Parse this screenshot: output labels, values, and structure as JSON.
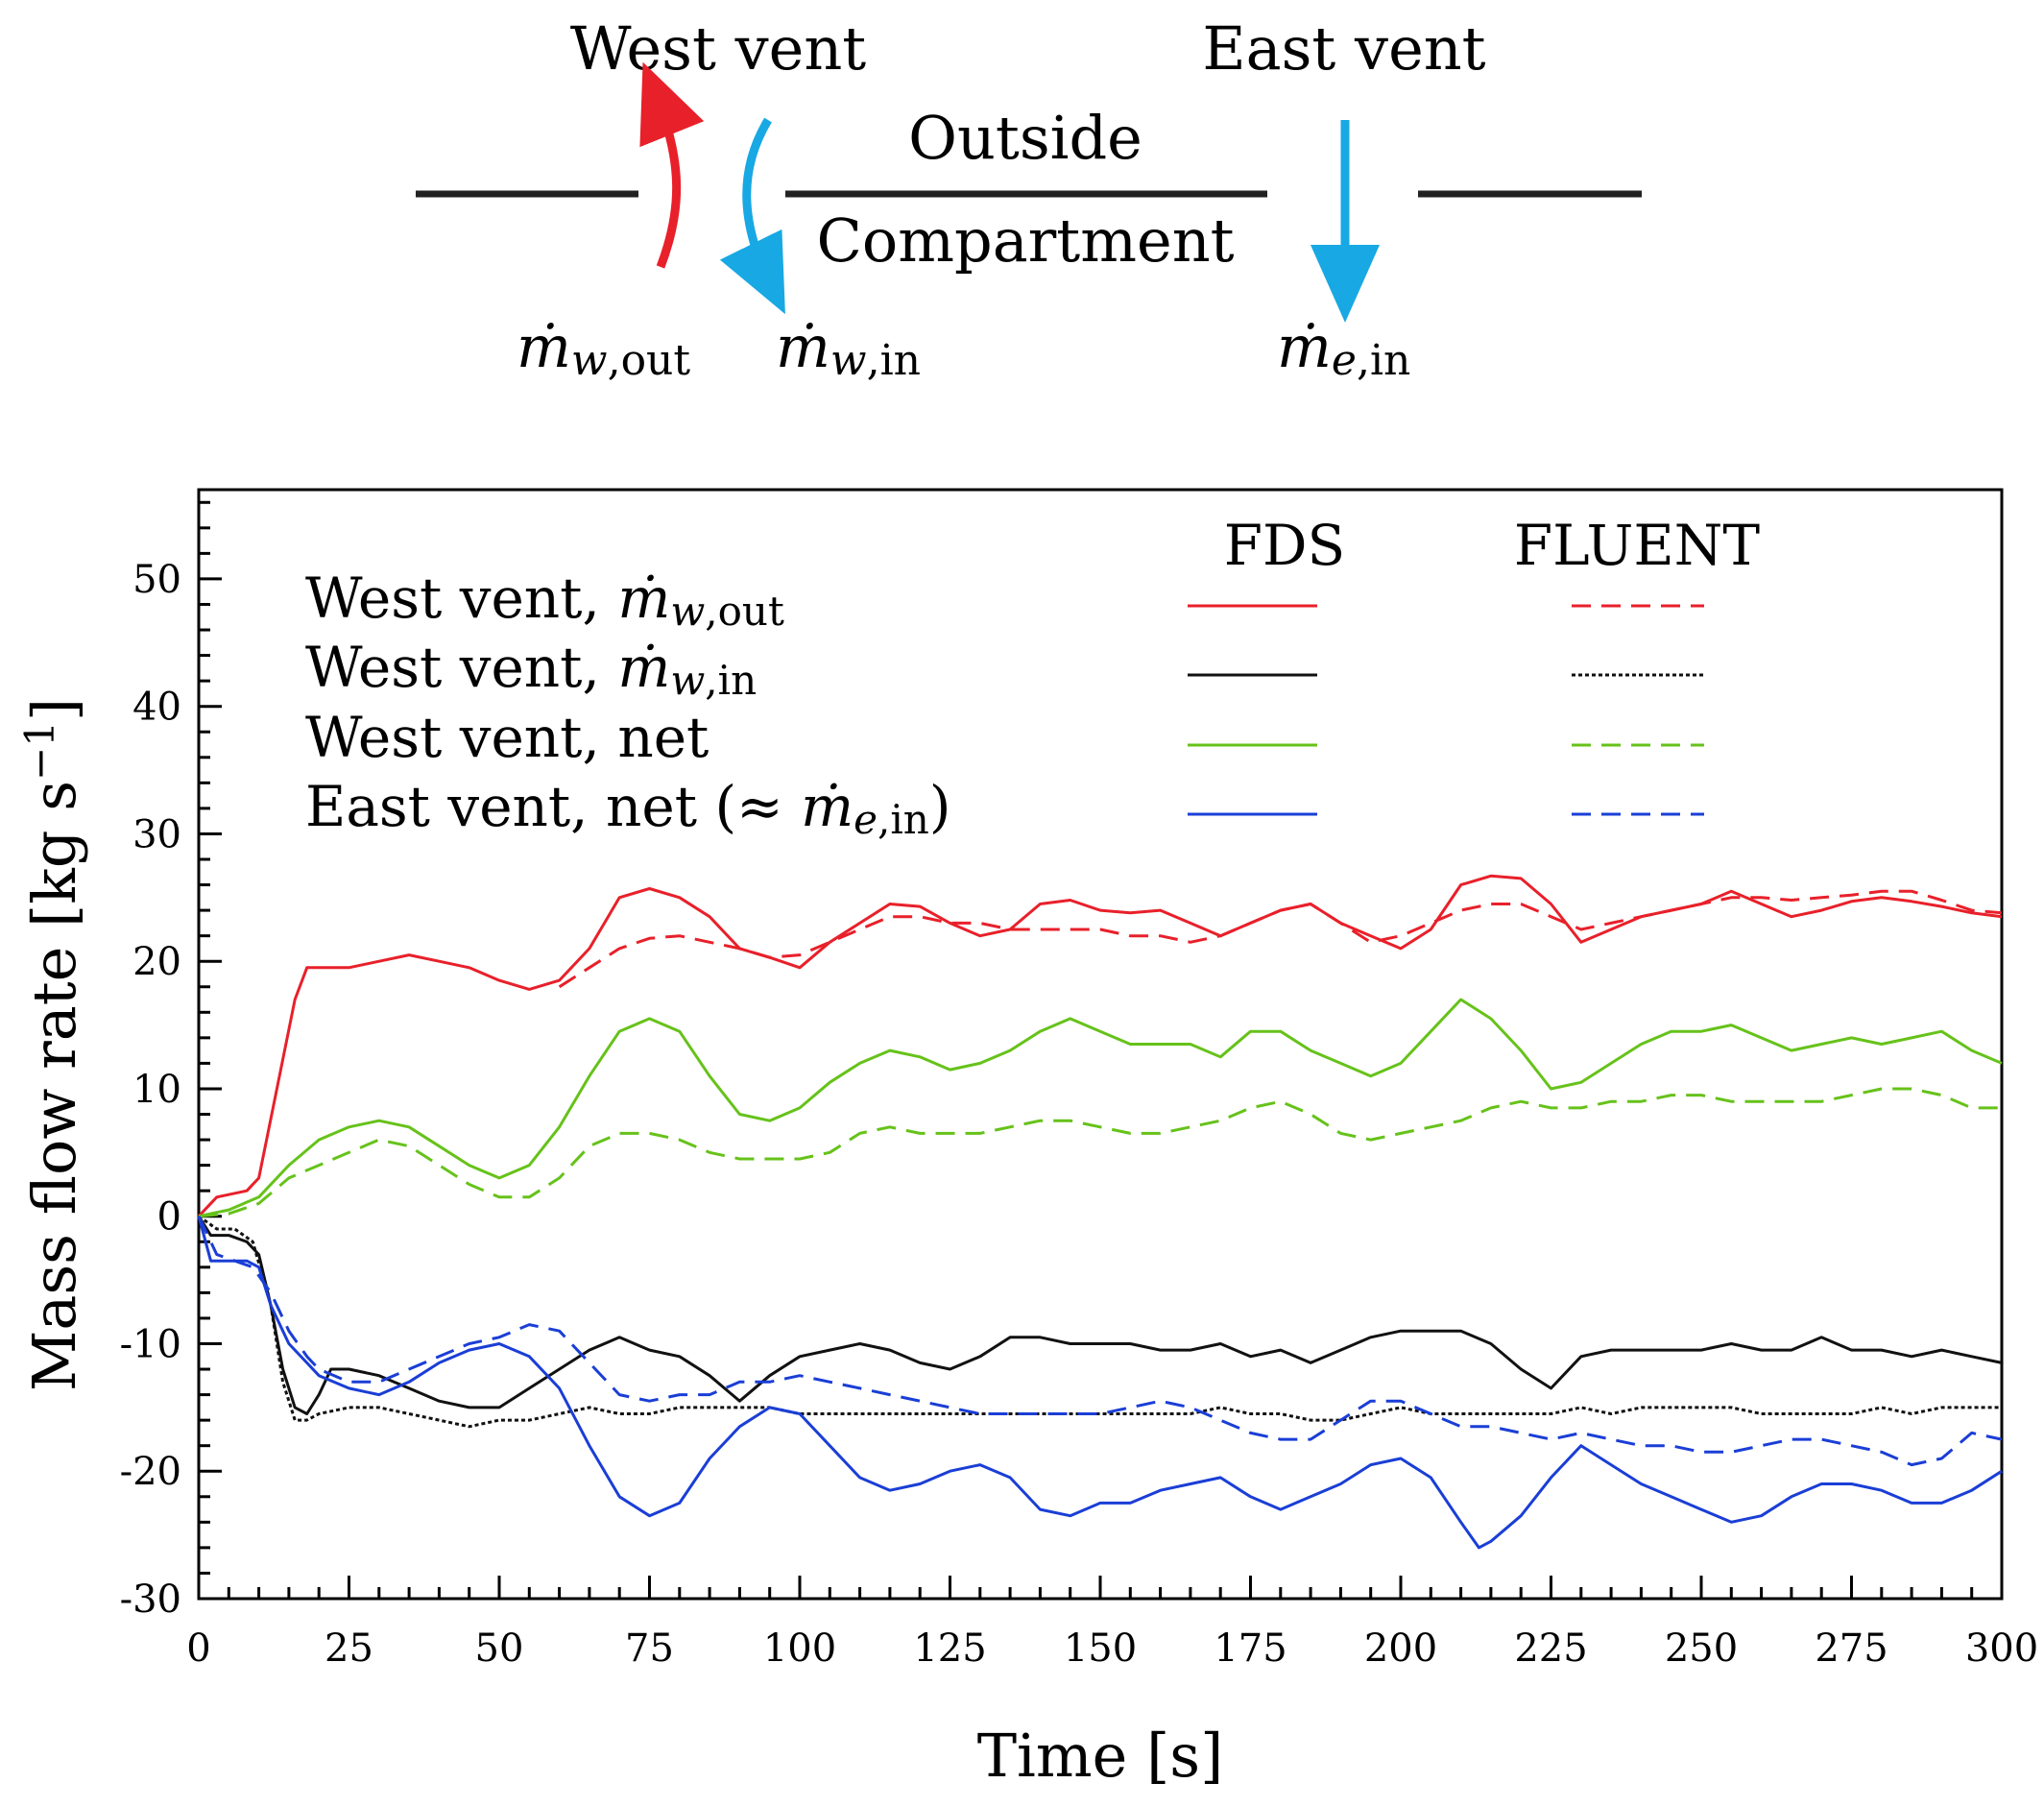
{
  "diagram": {
    "west_vent_label": "West vent",
    "east_vent_label": "East vent",
    "outside_label": "Outside",
    "compartment_label": "Compartment",
    "m_w_out": {
      "symbol": "ṁ",
      "sub": "w",
      "sub2": ",out"
    },
    "m_w_in": {
      "symbol": "ṁ",
      "sub": "w",
      "sub2": ",in"
    },
    "m_e_in": {
      "symbol": "ṁ",
      "sub": "e",
      "sub2": ",in"
    },
    "colors": {
      "out_arrow": "#e8202a",
      "in_arrow": "#18a8e4",
      "wall": "#222222"
    }
  },
  "legend": {
    "fds_header": "FDS",
    "fluent_header": "FLUENT",
    "entries": [
      {
        "text": "West vent, ",
        "sym": "ṁ",
        "sub": "w",
        "sub2": ",out",
        "suffix": ""
      },
      {
        "text": "West vent, ",
        "sym": "ṁ",
        "sub": "w",
        "sub2": ",in",
        "suffix": ""
      },
      {
        "text": "West vent, net",
        "sym": "",
        "sub": "",
        "sub2": "",
        "suffix": ""
      },
      {
        "text": "East vent, net (≈ ",
        "sym": "ṁ",
        "sub": "e",
        "sub2": ",in",
        "suffix": ")"
      }
    ]
  },
  "chart_data": {
    "type": "line",
    "xlabel": "Time [s]",
    "ylabel": "Mass flow rate [kg s",
    "ylabel_sup": "−1",
    "ylabel_close": "]",
    "xlim": [
      0,
      300
    ],
    "ylim": [
      -30,
      57
    ],
    "xticks": [
      0,
      25,
      50,
      75,
      100,
      125,
      150,
      175,
      200,
      225,
      250,
      275,
      300
    ],
    "yticks": [
      -30,
      -20,
      -10,
      0,
      10,
      20,
      30,
      40,
      50
    ],
    "ytick_labels": [
      "-30",
      "-20",
      "-10",
      "0",
      "10",
      "20",
      "30",
      "40",
      "50"
    ],
    "series": [
      {
        "name": "FDS West vent out",
        "color": "#e8202a",
        "dash": "solid",
        "x": [
          0,
          3,
          8,
          10,
          13,
          16,
          18,
          20,
          25,
          30,
          35,
          40,
          45,
          50,
          55,
          60,
          65,
          70,
          75,
          80,
          85,
          90,
          95,
          100,
          105,
          110,
          115,
          120,
          125,
          130,
          135,
          140,
          145,
          150,
          155,
          160,
          165,
          170,
          175,
          180,
          185,
          190,
          195,
          200,
          205,
          210,
          215,
          220,
          225,
          230,
          235,
          240,
          245,
          250,
          255,
          260,
          265,
          270,
          275,
          280,
          285,
          290,
          295,
          300
        ],
        "y": [
          0,
          1.5,
          2,
          3,
          10,
          17,
          19.5,
          19.5,
          19.5,
          20,
          20.5,
          20,
          19.5,
          18.5,
          17.8,
          18.5,
          21,
          25,
          25.7,
          25,
          23.5,
          21,
          20.3,
          19.5,
          21.5,
          23,
          24.5,
          24.3,
          23,
          22,
          22.5,
          24.5,
          24.8,
          24,
          23.8,
          24,
          23,
          22,
          23,
          24,
          24.5,
          23,
          22,
          21,
          22.5,
          26,
          26.7,
          26.5,
          24.5,
          21.5,
          22.5,
          23.5,
          24,
          24.5,
          25.5,
          24.5,
          23.5,
          24,
          24.7,
          25,
          24.7,
          24.3,
          23.8,
          23.5
        ]
      },
      {
        "name": "FLUENT West vent out",
        "color": "#e8202a",
        "dash": "dashed",
        "x": [
          60,
          65,
          70,
          75,
          80,
          85,
          90,
          95,
          100,
          105,
          110,
          115,
          120,
          125,
          130,
          135,
          140,
          145,
          150,
          155,
          160,
          165,
          170,
          175,
          180,
          185,
          190,
          195,
          200,
          205,
          210,
          215,
          220,
          225,
          230,
          235,
          240,
          245,
          250,
          255,
          260,
          265,
          270,
          275,
          280,
          285,
          290,
          295,
          300
        ],
        "y": [
          18,
          19.5,
          21,
          21.8,
          22,
          21.5,
          21,
          20.3,
          20.5,
          21.5,
          22.5,
          23.5,
          23.5,
          23,
          23,
          22.5,
          22.5,
          22.5,
          22.5,
          22,
          22,
          21.5,
          22,
          23,
          24,
          24.5,
          23,
          21.5,
          22,
          23,
          24,
          24.5,
          24.5,
          23.5,
          22.5,
          23,
          23.5,
          24,
          24.5,
          25,
          25,
          24.8,
          25,
          25.2,
          25.5,
          25.5,
          24.8,
          24,
          23.8
        ]
      },
      {
        "name": "FDS West vent in",
        "color": "#111111",
        "dash": "solid",
        "x": [
          0,
          2,
          5,
          8,
          10,
          12,
          14,
          16,
          18,
          20,
          22,
          25,
          30,
          35,
          40,
          45,
          50,
          55,
          60,
          65,
          70,
          75,
          80,
          85,
          90,
          95,
          100,
          105,
          110,
          115,
          120,
          125,
          130,
          135,
          140,
          145,
          150,
          155,
          160,
          165,
          170,
          175,
          180,
          185,
          190,
          195,
          200,
          205,
          210,
          215,
          220,
          225,
          230,
          235,
          240,
          245,
          250,
          255,
          260,
          265,
          270,
          275,
          280,
          285,
          290,
          295,
          300
        ],
        "y": [
          0,
          -1.5,
          -1.5,
          -2,
          -3,
          -7,
          -12,
          -15,
          -15.5,
          -14,
          -12,
          -12,
          -12.5,
          -13.5,
          -14.5,
          -15,
          -15,
          -13.5,
          -12,
          -10.5,
          -9.5,
          -10.5,
          -11,
          -12.5,
          -14.5,
          -12.5,
          -11,
          -10.5,
          -10,
          -10.5,
          -11.5,
          -12,
          -11,
          -9.5,
          -9.5,
          -10,
          -10,
          -10,
          -10.5,
          -10.5,
          -10,
          -11,
          -10.5,
          -11.5,
          -10.5,
          -9.5,
          -9,
          -9,
          -9,
          -10,
          -12,
          -13.5,
          -11,
          -10.5,
          -10.5,
          -10.5,
          -10.5,
          -10,
          -10.5,
          -10.5,
          -9.5,
          -10.5,
          -10.5,
          -11,
          -10.5,
          -11,
          -11.5
        ]
      },
      {
        "name": "FLUENT West vent in",
        "color": "#111111",
        "dash": "dotted",
        "x": [
          0,
          3,
          6,
          9,
          12,
          14,
          16,
          18,
          20,
          25,
          30,
          35,
          40,
          45,
          50,
          55,
          60,
          65,
          70,
          75,
          80,
          85,
          90,
          95,
          100,
          105,
          110,
          115,
          120,
          125,
          130,
          135,
          140,
          145,
          150,
          155,
          160,
          165,
          170,
          175,
          180,
          185,
          190,
          195,
          200,
          205,
          210,
          215,
          220,
          225,
          230,
          235,
          240,
          245,
          250,
          255,
          260,
          265,
          270,
          275,
          280,
          285,
          290,
          295,
          300
        ],
        "y": [
          0,
          -1,
          -1,
          -2,
          -7,
          -13,
          -16,
          -16,
          -15.5,
          -15,
          -15,
          -15.5,
          -16,
          -16.5,
          -16,
          -16,
          -15.5,
          -15,
          -15.5,
          -15.5,
          -15,
          -15,
          -15,
          -15,
          -15.5,
          -15.5,
          -15.5,
          -15.5,
          -15.5,
          -15.5,
          -15.5,
          -15.5,
          -15.5,
          -15.5,
          -15.5,
          -15.5,
          -15.5,
          -15.5,
          -15,
          -15.5,
          -15.5,
          -16,
          -16,
          -15.5,
          -15,
          -15.5,
          -15.5,
          -15.5,
          -15.5,
          -15.5,
          -15,
          -15.5,
          -15,
          -15,
          -15,
          -15,
          -15.5,
          -15.5,
          -15.5,
          -15.5,
          -15,
          -15.5,
          -15,
          -15,
          -15
        ]
      },
      {
        "name": "FDS West vent net",
        "color": "#66c21a",
        "dash": "solid",
        "x": [
          0,
          5,
          10,
          15,
          20,
          25,
          30,
          35,
          40,
          45,
          50,
          55,
          60,
          65,
          70,
          75,
          80,
          85,
          90,
          95,
          100,
          105,
          110,
          115,
          120,
          125,
          130,
          135,
          140,
          145,
          150,
          155,
          160,
          165,
          170,
          175,
          180,
          185,
          190,
          195,
          200,
          205,
          210,
          215,
          220,
          225,
          230,
          235,
          240,
          245,
          250,
          255,
          260,
          265,
          270,
          275,
          280,
          285,
          290,
          295,
          300
        ],
        "y": [
          0,
          0.5,
          1.5,
          4,
          6,
          7,
          7.5,
          7,
          5.5,
          4,
          3,
          4,
          7,
          11,
          14.5,
          15.5,
          14.5,
          11,
          8,
          7.5,
          8.5,
          10.5,
          12,
          13,
          12.5,
          11.5,
          12,
          13,
          14.5,
          15.5,
          14.5,
          13.5,
          13.5,
          13.5,
          12.5,
          14.5,
          14.5,
          13,
          12,
          11,
          12,
          14.5,
          17,
          15.5,
          13,
          10,
          10.5,
          12,
          13.5,
          14.5,
          14.5,
          15,
          14,
          13,
          13.5,
          14,
          13.5,
          14,
          14.5,
          13,
          12
        ]
      },
      {
        "name": "FLUENT West vent net",
        "color": "#66c21a",
        "dash": "dashed",
        "x": [
          0,
          5,
          10,
          15,
          20,
          25,
          30,
          35,
          40,
          45,
          50,
          55,
          60,
          65,
          70,
          75,
          80,
          85,
          90,
          95,
          100,
          105,
          110,
          115,
          120,
          125,
          130,
          135,
          140,
          145,
          150,
          155,
          160,
          165,
          170,
          175,
          180,
          185,
          190,
          195,
          200,
          205,
          210,
          215,
          220,
          225,
          230,
          235,
          240,
          245,
          250,
          255,
          260,
          265,
          270,
          275,
          280,
          285,
          290,
          295,
          300
        ],
        "y": [
          0,
          0.2,
          1,
          3,
          4,
          5,
          6,
          5.5,
          4,
          2.5,
          1.5,
          1.5,
          3,
          5.5,
          6.5,
          6.5,
          6,
          5,
          4.5,
          4.5,
          4.5,
          5,
          6.5,
          7,
          6.5,
          6.5,
          6.5,
          7,
          7.5,
          7.5,
          7,
          6.5,
          6.5,
          7,
          7.5,
          8.5,
          9,
          8,
          6.5,
          6,
          6.5,
          7,
          7.5,
          8.5,
          9,
          8.5,
          8.5,
          9,
          9,
          9.5,
          9.5,
          9,
          9,
          9,
          9,
          9.5,
          10,
          10,
          9.5,
          8.5,
          8.5
        ]
      },
      {
        "name": "FDS East vent net",
        "color": "#1a3ed6",
        "dash": "solid",
        "x": [
          0,
          2,
          5,
          8,
          10,
          12,
          15,
          18,
          20,
          25,
          30,
          35,
          40,
          45,
          50,
          55,
          60,
          65,
          70,
          75,
          80,
          85,
          90,
          95,
          100,
          105,
          110,
          115,
          120,
          125,
          130,
          135,
          140,
          145,
          150,
          155,
          160,
          165,
          170,
          175,
          180,
          185,
          190,
          195,
          200,
          205,
          210,
          213,
          215,
          220,
          225,
          230,
          235,
          240,
          245,
          250,
          255,
          260,
          265,
          270,
          275,
          280,
          285,
          290,
          295,
          300
        ],
        "y": [
          0,
          -3.5,
          -3.5,
          -3.5,
          -4,
          -7,
          -10,
          -11.5,
          -12.5,
          -13.5,
          -14,
          -13,
          -11.5,
          -10.5,
          -10,
          -11,
          -13.5,
          -18,
          -22,
          -23.5,
          -22.5,
          -19,
          -16.5,
          -15,
          -15.5,
          -18,
          -20.5,
          -21.5,
          -21,
          -20,
          -19.5,
          -20.5,
          -23,
          -23.5,
          -22.5,
          -22.5,
          -21.5,
          -21,
          -20.5,
          -22,
          -23,
          -22,
          -21,
          -19.5,
          -19,
          -20.5,
          -24,
          -26,
          -25.5,
          -23.5,
          -20.5,
          -18,
          -19.5,
          -21,
          -22,
          -23,
          -24,
          -23.5,
          -22,
          -21,
          -21,
          -21.5,
          -22.5,
          -22.5,
          -21.5,
          -20
        ]
      },
      {
        "name": "FLUENT East vent net",
        "color": "#1a3ed6",
        "dash": "dashed",
        "x": [
          0,
          3,
          6,
          9,
          12,
          15,
          18,
          20,
          25,
          30,
          35,
          40,
          45,
          50,
          55,
          60,
          65,
          70,
          75,
          80,
          85,
          90,
          95,
          100,
          105,
          110,
          115,
          120,
          125,
          130,
          135,
          140,
          145,
          150,
          155,
          160,
          165,
          170,
          175,
          180,
          185,
          190,
          195,
          200,
          205,
          210,
          215,
          220,
          225,
          230,
          235,
          240,
          245,
          250,
          255,
          260,
          265,
          270,
          275,
          280,
          285,
          290,
          295,
          300
        ],
        "y": [
          0,
          -3,
          -3.5,
          -4,
          -6,
          -9,
          -11,
          -12,
          -13,
          -13,
          -12,
          -11,
          -10,
          -9.5,
          -8.5,
          -9,
          -11.5,
          -14,
          -14.5,
          -14,
          -14,
          -13,
          -13,
          -12.5,
          -13,
          -13.5,
          -14,
          -14.5,
          -15,
          -15.5,
          -15.5,
          -15.5,
          -15.5,
          -15.5,
          -15,
          -14.5,
          -15,
          -16,
          -17,
          -17.5,
          -17.5,
          -16,
          -14.5,
          -14.5,
          -15.5,
          -16.5,
          -16.5,
          -17,
          -17.5,
          -17,
          -17.5,
          -18,
          -18,
          -18.5,
          -18.5,
          -18,
          -17.5,
          -17.5,
          -18,
          -18.5,
          -19.5,
          -19,
          -17,
          -17.5
        ]
      }
    ]
  }
}
